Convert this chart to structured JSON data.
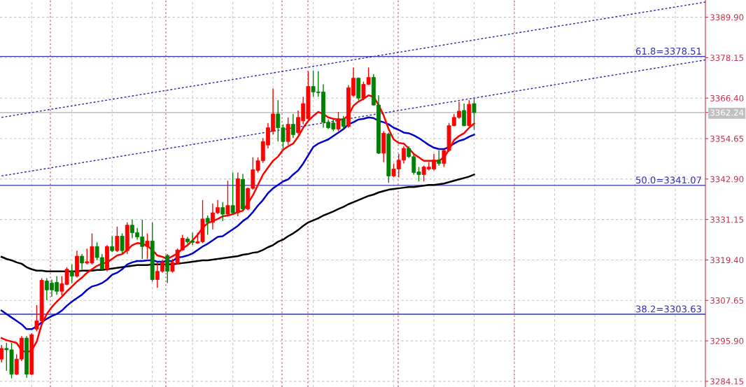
{
  "chart_data": {
    "type": "candlestick",
    "categories": [
      null,
      null,
      null,
      null,
      null,
      null,
      null,
      null,
      null,
      null,
      null,
      null,
      null,
      null,
      null,
      null,
      null,
      null,
      null,
      null,
      null,
      null,
      null,
      null,
      null,
      null,
      null,
      null,
      null,
      null,
      null,
      null,
      null,
      null,
      null,
      null,
      null,
      null,
      null,
      null,
      null,
      null,
      null,
      null,
      null,
      null,
      null,
      null,
      null,
      null,
      null,
      null,
      null,
      null,
      null,
      null,
      null,
      null,
      null,
      null,
      null,
      null,
      null,
      null,
      null,
      null,
      null,
      null,
      null,
      null,
      null,
      null,
      null,
      null,
      null,
      null,
      null,
      null,
      null,
      null,
      null,
      null,
      null,
      null,
      null,
      null,
      null,
      null,
      null,
      null,
      null,
      null,
      null,
      null,
      null,
      null,
      null,
      null,
      null,
      null,
      null,
      null,
      null,
      null,
      null,
      null,
      null,
      null,
      null,
      null,
      null,
      null,
      null,
      null,
      null,
      null,
      null,
      null,
      null,
      null,
      null,
      null,
      null,
      null,
      null,
      null,
      null,
      null,
      null,
      null,
      null,
      null,
      null,
      null,
      null,
      null,
      null,
      null,
      null,
      null,
      null
    ],
    "colors": [
      "#ff0000",
      "#008000",
      "#008000",
      "#ff0000",
      "#ff0000",
      "#008000",
      "#ff0000",
      "#ff0000",
      "#ff0000",
      "#008000",
      "#008000",
      "#008000",
      "#ff0000",
      "#ff0000",
      "#008000",
      "#ff0000",
      "#008000",
      "#ff0000",
      "#ff0000",
      "#008000",
      "#008000",
      "#ff0000",
      "#008000",
      "#ff0000",
      "#008000",
      "#ff0000",
      "#008000",
      "#008000",
      "#008000",
      "#ff0000",
      "#008000",
      "#ff0000",
      "#ff0000",
      "#008000",
      "#ff0000",
      "#ff0000",
      "#ff0000",
      "#008000",
      "#008000",
      "#ff0000",
      "#ff0000",
      "#008000",
      "#ff0000",
      "#ff0000",
      "#008000",
      "#ff0000",
      "#008000",
      "#ff0000",
      "#008000",
      "#ff0000",
      "#ff0000",
      "#ff0000",
      "#ff0000",
      "#ff0000",
      "#ff0000",
      "#008000",
      "#008000",
      "#ff0000",
      "#008000",
      "#ff0000",
      "#ff0000",
      "#ff0000",
      "#008000",
      "#008000",
      "#008000",
      "#008000",
      "#008000",
      "#ff0000",
      "#008000",
      "#ff0000",
      "#ff0000",
      "#008000",
      "#ff0000",
      "#ff0000",
      "#008000",
      "#008000",
      "#ff0000",
      "#008000",
      "#ff0000",
      "#ff0000",
      "#ff0000",
      "#008000",
      "#008000",
      "#008000",
      "#ff0000",
      "#ff0000",
      "#ff0000",
      "#008000",
      "#ff0000",
      "#ff0000",
      "#ff0000",
      "#ff0000",
      "#008000",
      "#ff0000",
      "#008000",
      null,
      null,
      null,
      null,
      null,
      null,
      null,
      null,
      null,
      null,
      null,
      null,
      null,
      null,
      null,
      null,
      null,
      null,
      null,
      null,
      null,
      null,
      null,
      null,
      null,
      null,
      null,
      null,
      null,
      null,
      null,
      null,
      null,
      null,
      null,
      null,
      null,
      null,
      null,
      null,
      null,
      null,
      null,
      null,
      null,
      null
    ],
    "ohlc": [
      [
        3290.6,
        3294.7,
        3289.6,
        3293.7
      ],
      [
        3293.7,
        3295.3,
        3287.2,
        3293.3
      ],
      [
        3293.3,
        3295.3,
        3285.0,
        3286.2
      ],
      [
        3286.2,
        3292.0,
        3286.0,
        3290.6
      ],
      [
        3290.6,
        3297.3,
        3290.0,
        3296.7
      ],
      [
        3296.7,
        3297.3,
        3285.2,
        3286.2
      ],
      [
        3286.2,
        3298.1,
        3286.0,
        3297.7
      ],
      [
        3299.3,
        3306.3,
        3298.7,
        3301.7
      ],
      [
        3301.7,
        3314.1,
        3301.3,
        3313.5
      ],
      [
        3313.3,
        3314.1,
        3307.7,
        3310.7
      ],
      [
        3312.7,
        3313.7,
        3308.7,
        3310.7
      ],
      [
        3312.9,
        3314.7,
        3309.3,
        3310.3
      ],
      [
        3310.3,
        3314.7,
        3309.1,
        3312.5
      ],
      [
        3312.3,
        3317.3,
        3312.1,
        3316.7
      ],
      [
        3316.1,
        3318.1,
        3312.7,
        3314.7
      ],
      [
        3314.7,
        3322.1,
        3314.3,
        3320.5
      ],
      [
        3320.5,
        3321.1,
        3316.7,
        3318.5
      ],
      [
        3318.5,
        3322.7,
        3318.1,
        3318.9
      ],
      [
        3318.5,
        3327.1,
        3318.1,
        3323.3
      ],
      [
        3323.3,
        3324.5,
        3319.3,
        3320.1
      ],
      [
        3320.1,
        3321.1,
        3316.3,
        3316.7
      ],
      [
        3316.7,
        3323.7,
        3316.1,
        3323.3
      ],
      [
        3323.3,
        3326.3,
        3321.7,
        3322.1
      ],
      [
        3322.1,
        3329.1,
        3321.7,
        3326.3
      ],
      [
        3326.3,
        3327.1,
        3321.3,
        3322.1
      ],
      [
        3322.1,
        3330.3,
        3321.1,
        3329.5
      ],
      [
        3329.5,
        3331.1,
        3325.7,
        3327.3
      ],
      [
        3327.3,
        3328.7,
        3325.3,
        3326.1
      ],
      [
        3326.1,
        3331.1,
        3319.7,
        3323.3
      ],
      [
        3323.3,
        3327.1,
        3319.7,
        3324.9
      ],
      [
        3324.9,
        3330.3,
        3313.1,
        3313.7
      ],
      [
        3313.7,
        3318.7,
        3311.3,
        3316.1
      ],
      [
        3316.1,
        3319.5,
        3315.7,
        3318.7
      ],
      [
        3320.7,
        3321.1,
        3312.7,
        3316.1
      ],
      [
        3316.1,
        3319.7,
        3315.7,
        3318.7
      ],
      [
        3318.3,
        3322.7,
        3318.1,
        3322.3
      ],
      [
        3322.3,
        3326.7,
        3322.1,
        3325.7
      ],
      [
        3325.5,
        3326.1,
        3324.1,
        3324.7
      ],
      [
        3324.9,
        3327.3,
        3323.7,
        3324.5
      ],
      [
        3324.3,
        3327.3,
        3324.1,
        3324.7
      ],
      [
        3324.7,
        3336.8,
        3324.3,
        3331.3
      ],
      [
        3331.5,
        3332.3,
        3326.7,
        3330.3
      ],
      [
        3330.3,
        3335.8,
        3328.3,
        3333.1
      ],
      [
        3333.1,
        3336.8,
        3332.7,
        3334.6
      ],
      [
        3334.6,
        3336.2,
        3330.7,
        3332.7
      ],
      [
        3332.7,
        3342.4,
        3332.3,
        3335.2
      ],
      [
        3335.2,
        3344.8,
        3332.7,
        3333.1
      ],
      [
        3333.1,
        3344.8,
        3332.1,
        3343.0
      ],
      [
        3342.8,
        3344.4,
        3333.8,
        3334.2
      ],
      [
        3334.2,
        3340.4,
        3333.8,
        3340.2
      ],
      [
        3340.2,
        3349.2,
        3339.8,
        3345.6
      ],
      [
        3345.4,
        3349.2,
        3344.8,
        3348.2
      ],
      [
        3348.2,
        3354.8,
        3347.6,
        3353.8
      ],
      [
        3352.8,
        3359.2,
        3351.8,
        3357.8
      ],
      [
        3356.8,
        3369.2,
        3355.8,
        3361.8
      ],
      [
        3361.8,
        3365.8,
        3353.8,
        3357.8
      ],
      [
        3357.8,
        3358.8,
        3351.8,
        3353.8
      ],
      [
        3353.8,
        3360.8,
        3352.8,
        3358.8
      ],
      [
        3358.8,
        3361.8,
        3354.8,
        3355.8
      ],
      [
        3356.4,
        3362.8,
        3355.8,
        3360.8
      ],
      [
        3359.8,
        3366.8,
        3358.8,
        3364.8
      ],
      [
        3360.4,
        3374.2,
        3360.2,
        3369.8
      ],
      [
        3369.8,
        3374.4,
        3366.8,
        3368.2
      ],
      [
        3368.2,
        3374.2,
        3366.8,
        3368.0
      ],
      [
        3368.2,
        3370.4,
        3357.8,
        3359.4
      ],
      [
        3359.4,
        3360.2,
        3357.4,
        3357.8
      ],
      [
        3359.2,
        3360.2,
        3356.8,
        3357.4
      ],
      [
        3357.4,
        3362.4,
        3356.8,
        3360.4
      ],
      [
        3360.4,
        3361.2,
        3357.4,
        3358.2
      ],
      [
        3358.2,
        3370.2,
        3357.8,
        3369.4
      ],
      [
        3367.2,
        3375.3,
        3366.8,
        3372.2
      ],
      [
        3372.2,
        3372.4,
        3365.8,
        3366.4
      ],
      [
        3366.4,
        3371.2,
        3365.8,
        3370.4
      ],
      [
        3370.4,
        3375.3,
        3370.2,
        3372.4
      ],
      [
        3372.4,
        3373.4,
        3364.2,
        3364.4
      ],
      [
        3364.4,
        3367.2,
        3350.2,
        3350.4
      ],
      [
        3350.4,
        3356.8,
        3347.8,
        3356.2
      ],
      [
        3356.0,
        3356.4,
        3341.8,
        3343.8
      ],
      [
        3343.8,
        3347.4,
        3343.4,
        3345.8
      ],
      [
        3345.8,
        3350.2,
        3343.4,
        3348.4
      ],
      [
        3348.4,
        3352.4,
        3347.4,
        3351.8
      ],
      [
        3351.8,
        3352.4,
        3349.0,
        3349.4
      ],
      [
        3349.4,
        3350.2,
        3344.2,
        3344.8
      ],
      [
        3345.0,
        3346.4,
        3342.2,
        3344.2
      ],
      [
        3344.2,
        3346.8,
        3342.2,
        3346.4
      ],
      [
        3345.8,
        3347.8,
        3345.4,
        3346.4
      ],
      [
        3345.8,
        3350.2,
        3345.4,
        3348.4
      ],
      [
        3348.4,
        3351.2,
        3346.8,
        3347.4
      ],
      [
        3347.4,
        3351.4,
        3346.4,
        3351.2
      ],
      [
        3351.2,
        3359.2,
        3350.8,
        3358.4
      ],
      [
        3358.4,
        3361.8,
        3358.2,
        3360.8
      ],
      [
        3360.8,
        3365.4,
        3360.4,
        3362.6
      ],
      [
        3362.8,
        3364.8,
        3358.2,
        3358.4
      ],
      [
        3358.4,
        3365.8,
        3358.2,
        3364.6
      ],
      [
        3364.8,
        3366.2,
        3357.2,
        3362.2
      ],
      null,
      null,
      null,
      null,
      null,
      null,
      null,
      null,
      null,
      null,
      null,
      null,
      null,
      null,
      null,
      null,
      null,
      null,
      null,
      null,
      null,
      null,
      null,
      null,
      null,
      null,
      null,
      null,
      null,
      null,
      null,
      null,
      null,
      null,
      null,
      null,
      null,
      null,
      null,
      null,
      null,
      null,
      null,
      null,
      null,
      null
    ],
    "series": [
      {
        "type": "line",
        "color": "#000000",
        "line_style": "solid",
        "values": [
          3320.3,
          3319.7,
          3319.3,
          3318.7,
          3318.3,
          3317.3,
          3316.7,
          3316.3,
          3316.3,
          3316.1,
          3316.1,
          3316.1,
          3316.1,
          3316.1,
          3316.1,
          3316.1,
          3316.3,
          3316.3,
          3316.3,
          3316.5,
          3316.5,
          3316.7,
          3316.9,
          3317.1,
          3317.3,
          3317.5,
          3317.7,
          3317.9,
          3317.9,
          3317.9,
          3318.1,
          3318.1,
          3318.1,
          3318.1,
          3318.1,
          3318.3,
          3318.5,
          3318.7,
          3318.9,
          3319.1,
          3319.3,
          3319.3,
          3319.5,
          3319.7,
          3319.9,
          3320.1,
          3320.3,
          3320.5,
          3320.9,
          3321.1,
          3321.5,
          3321.7,
          3322.3,
          3323.1,
          3323.7,
          3324.7,
          3325.3,
          3326.3,
          3327.1,
          3328.1,
          3329.3,
          3330.3,
          3330.9,
          3331.5,
          3332.3,
          3332.9,
          3333.5,
          3334.2,
          3334.8,
          3335.6,
          3336.2,
          3336.8,
          3337.4,
          3338.0,
          3338.4,
          3339.0,
          3339.4,
          3339.8,
          3340.0,
          3340.2,
          3340.4,
          3340.6,
          3340.6,
          3340.8,
          3341.0,
          3341.2,
          3341.2,
          3341.4,
          3341.6,
          3342.0,
          3342.4,
          3342.8,
          3343.2,
          3343.6,
          3344.2,
          null,
          null,
          null,
          null,
          null,
          null,
          null,
          null,
          null,
          null,
          null,
          null,
          null,
          null,
          null,
          null,
          null,
          null,
          null,
          null,
          null,
          null,
          null,
          null,
          null,
          null,
          null,
          null,
          null,
          null,
          null,
          null,
          null,
          null,
          null,
          null,
          null,
          null,
          null,
          null,
          null,
          null,
          null,
          null,
          null,
          null
        ]
      },
      {
        "type": "line",
        "color": "#0000cc",
        "line_style": "solid",
        "values": [
          3304.7,
          3303.7,
          3302.7,
          3301.7,
          3300.7,
          3299.3,
          3299.3,
          3300.1,
          3301.3,
          3302.3,
          3303.1,
          3303.7,
          3304.7,
          3306.1,
          3307.3,
          3308.3,
          3309.3,
          3310.7,
          3311.7,
          3312.1,
          3312.7,
          3313.7,
          3315.1,
          3315.7,
          3316.7,
          3318.1,
          3318.7,
          3319.1,
          3319.1,
          3319.3,
          3319.3,
          3318.9,
          3318.9,
          3319.1,
          3319.1,
          3320.1,
          3320.3,
          3320.7,
          3321.3,
          3322.3,
          3323.3,
          3324.1,
          3325.1,
          3326.1,
          3326.3,
          3327.3,
          3328.3,
          3329.3,
          3330.7,
          3331.7,
          3333.3,
          3335.2,
          3336.8,
          3338.8,
          3340.2,
          3341.2,
          3342.2,
          3342.8,
          3344.2,
          3345.4,
          3347.4,
          3349.8,
          3352.2,
          3353.2,
          3353.8,
          3354.4,
          3355.4,
          3356.4,
          3357.4,
          3358.8,
          3359.4,
          3360.2,
          3360.4,
          3360.8,
          3360.6,
          3359.8,
          3359.4,
          3358.8,
          3357.8,
          3357.2,
          3356.4,
          3356.2,
          3355.6,
          3354.8,
          3353.8,
          3352.8,
          3352.0,
          3351.6,
          3351.6,
          3352.2,
          3353.2,
          3354.0,
          3354.4,
          3355.2,
          3355.8,
          null,
          null,
          null,
          null,
          null,
          null,
          null,
          null,
          null,
          null,
          null,
          null,
          null,
          null,
          null,
          null,
          null,
          null,
          null,
          null,
          null,
          null,
          null,
          null,
          null,
          null,
          null,
          null,
          null,
          null,
          null,
          null,
          null,
          null,
          null,
          null,
          null,
          null,
          null,
          null,
          null,
          null,
          null,
          null,
          null,
          null
        ]
      },
      {
        "type": "line",
        "color": "#ff0000",
        "line_style": "solid",
        "values": [
          3296.7,
          3296.1,
          3295.7,
          3295.3,
          3293.1,
          3292.6,
          3293.1,
          3295.7,
          3300.7,
          3303.7,
          3305.7,
          3307.3,
          3308.7,
          3310.3,
          3311.7,
          3313.1,
          3314.3,
          3315.7,
          3316.7,
          3317.7,
          3318.3,
          3318.7,
          3319.7,
          3320.7,
          3321.1,
          3322.3,
          3323.7,
          3324.3,
          3324.1,
          3323.5,
          3322.3,
          3320.7,
          3320.3,
          3319.7,
          3320.5,
          3321.3,
          3322.7,
          3323.7,
          3325.1,
          3326.7,
          3328.7,
          3330.1,
          3330.7,
          3331.3,
          3332.1,
          3332.3,
          3332.7,
          3333.3,
          3333.7,
          3335.8,
          3338.2,
          3341.2,
          3344.2,
          3346.2,
          3348.2,
          3349.4,
          3351.4,
          3352.4,
          3353.2,
          3355.2,
          3357.8,
          3359.8,
          3361.2,
          3362.4,
          3361.8,
          3360.8,
          3360.4,
          3360.2,
          3360.2,
          3361.4,
          3364.2,
          3365.4,
          3366.2,
          3367.2,
          3366.8,
          3364.4,
          3361.4,
          3357.4,
          3354.4,
          3353.4,
          3353.2,
          3351.8,
          3350.2,
          3349.2,
          3348.2,
          3348.2,
          3348.2,
          3348.2,
          3349.2,
          3351.4,
          3354.2,
          3355.4,
          3356.2,
          3357.8,
          3359.0,
          null,
          null,
          null,
          null,
          null,
          null,
          null,
          null,
          null,
          null,
          null,
          null,
          null,
          null,
          null,
          null,
          null,
          null,
          null,
          null,
          null,
          null,
          null,
          null,
          null,
          null,
          null,
          null,
          null,
          null,
          null,
          null,
          null,
          null,
          null,
          null,
          null,
          null,
          null,
          null,
          null,
          null,
          null,
          null,
          null,
          null
        ]
      },
      {
        "type": "line",
        "color": "#2424a8",
        "line_style": "dotted",
        "values": [
          3360.8,
          null,
          null,
          null,
          null,
          null,
          null,
          null,
          null,
          null,
          null,
          null,
          null,
          null,
          null,
          null,
          null,
          null,
          null,
          null,
          null,
          null,
          null,
          null,
          null,
          null,
          null,
          null,
          null,
          null,
          null,
          null,
          null,
          null,
          null,
          null,
          null,
          null,
          null,
          null,
          null,
          null,
          null,
          null,
          null,
          null,
          null,
          null,
          null,
          null,
          null,
          null,
          null,
          null,
          null,
          null,
          null,
          null,
          null,
          null,
          null,
          null,
          null,
          null,
          null,
          null,
          null,
          null,
          null,
          null,
          null,
          null,
          null,
          null,
          null,
          null,
          null,
          null,
          null,
          null,
          null,
          null,
          null,
          null,
          null,
          null,
          null,
          null,
          null,
          null,
          null,
          null,
          null,
          null,
          null,
          null,
          null,
          null,
          null,
          null,
          null,
          null,
          null,
          null,
          null,
          null,
          null,
          null,
          null,
          null,
          null,
          null,
          null,
          null,
          null,
          null,
          null,
          null,
          null,
          null,
          null,
          null,
          null,
          null,
          null,
          null,
          null,
          null,
          null,
          null,
          null,
          null,
          null,
          null,
          null,
          null,
          null,
          null,
          null,
          null,
          3394.3
        ]
      },
      {
        "type": "line",
        "color": "#2424a8",
        "line_style": "dotted",
        "values": [
          3343.8,
          null,
          null,
          null,
          null,
          null,
          null,
          null,
          null,
          null,
          null,
          null,
          null,
          null,
          null,
          null,
          null,
          null,
          null,
          null,
          null,
          null,
          null,
          null,
          null,
          null,
          null,
          null,
          null,
          null,
          null,
          null,
          null,
          null,
          null,
          null,
          null,
          null,
          null,
          null,
          null,
          null,
          null,
          null,
          null,
          null,
          null,
          null,
          null,
          null,
          null,
          null,
          null,
          null,
          null,
          null,
          null,
          null,
          null,
          null,
          null,
          null,
          null,
          null,
          null,
          null,
          null,
          null,
          null,
          null,
          null,
          null,
          null,
          null,
          null,
          null,
          null,
          null,
          null,
          null,
          null,
          null,
          null,
          null,
          null,
          null,
          null,
          null,
          null,
          null,
          null,
          null,
          null,
          null,
          null,
          null,
          null,
          null,
          null,
          null,
          null,
          null,
          null,
          null,
          null,
          null,
          null,
          null,
          null,
          null,
          null,
          null,
          null,
          null,
          null,
          null,
          null,
          null,
          null,
          null,
          null,
          null,
          null,
          null,
          null,
          null,
          null,
          null,
          null,
          null,
          null,
          null,
          null,
          null,
          null,
          null,
          null,
          null,
          null,
          null,
          3377.5
        ]
      }
    ],
    "ylim": [
      3282.5,
      3394.9
    ],
    "yticks": [
      {
        "value": 3284.15,
        "label": "3284.15"
      },
      {
        "value": 3295.9,
        "label": "3295.90"
      },
      {
        "value": 3307.65,
        "label": "3307.65"
      },
      {
        "value": 3319.4,
        "label": "3319.40"
      },
      {
        "value": 3331.15,
        "label": "3331.15"
      },
      {
        "value": 3342.9,
        "label": "3342.90"
      },
      {
        "value": 3354.65,
        "label": "3354.65"
      },
      {
        "value": 3362.24,
        "label": "3362.24"
      },
      {
        "value": 3366.4,
        "label": "3366.40"
      },
      {
        "value": 3378.15,
        "label": "3378.15"
      },
      {
        "value": 3389.9,
        "label": "3389.90"
      }
    ],
    "ref_lines": [
      {
        "axis": "y",
        "value": 3378.51,
        "label": "61.8=3378.51",
        "color": "#3030b0",
        "line_style": "solid"
      },
      {
        "axis": "y",
        "value": 3341.07,
        "label": "50.0=3341.07",
        "color": "#3030b0",
        "line_style": "solid"
      },
      {
        "axis": "y",
        "value": 3303.63,
        "label": "38.2=3303.63",
        "color": "#3030b0",
        "line_style": "solid"
      },
      {
        "axis": "y",
        "value": 3362.24,
        "color": "#c0c0c0",
        "line_style": "solid"
      }
    ],
    "grid": true,
    "tick_labels": "y"
  }
}
